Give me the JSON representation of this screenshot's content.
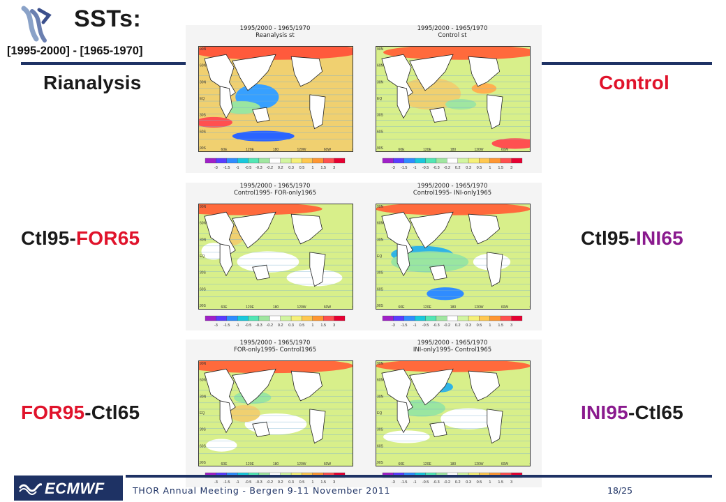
{
  "slide": {
    "title": "SSTs:",
    "subtitle": "[1995-2000] - [1965-1970]",
    "labels": {
      "reanalysis": "Rianalysis",
      "control": "Control",
      "ctl95_for65": {
        "a": "Ctl95-",
        "b": "FOR65"
      },
      "ctl95_ini65": {
        "a": "Ctl95-",
        "b": "INI65"
      },
      "for95_ctl65": {
        "a": "FOR95",
        "b": "-Ctl65"
      },
      "ini95_ctl65": {
        "a": "INI95",
        "b": "-Ctl65"
      }
    }
  },
  "panels": [
    {
      "line1": "1995/2000 - 1965/1970",
      "line2": "Reanalysis st"
    },
    {
      "line1": "1995/2000 - 1965/1970",
      "line2": "Control st"
    },
    {
      "line1": "1995/2000 - 1965/1970",
      "line2": "Control1995- FOR-only1965"
    },
    {
      "line1": "1995/2000 - 1965/1970",
      "line2": "Control1995- INI-only1965"
    },
    {
      "line1": "1995/2000 - 1965/1970",
      "line2": "FOR-only1995- Control1965"
    },
    {
      "line1": "1995/2000 - 1965/1970",
      "line2": "INI-only1995- Control1965"
    }
  ],
  "colorbar": {
    "ticks": [
      "-3",
      "-1.5",
      "-1",
      "-0.5",
      "-0.3",
      "-0.2",
      "0.2",
      "0.3",
      "0.5",
      "1",
      "1.5",
      "3"
    ],
    "colors": [
      "#a020c8",
      "#5a3cff",
      "#2f8cff",
      "#19c8dc",
      "#52e6b4",
      "#a0e6a0",
      "#ffffff",
      "#d2f5a0",
      "#f5f078",
      "#ffc850",
      "#ff9632",
      "#ff5050",
      "#e60032"
    ]
  },
  "map_axes": {
    "lon_ticks": [
      "0",
      "60E",
      "120E",
      "180",
      "120W",
      "60W",
      "0"
    ],
    "lat_ticks": [
      "90N",
      "60N",
      "30N",
      "EQ",
      "30S",
      "60S",
      "90S"
    ]
  },
  "footer": {
    "logo": "ECMWF",
    "text": "THOR Annual Meeting - Bergen 9-11 November 2011",
    "page": "18/25"
  }
}
